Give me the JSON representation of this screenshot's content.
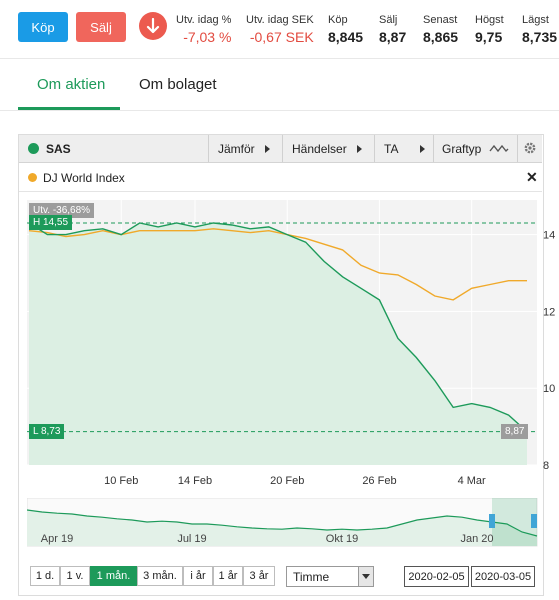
{
  "actions": {
    "buy_label": "Köp",
    "sell_label": "Sälj"
  },
  "stats": [
    {
      "label": "Utv. idag %",
      "value": "-7,03 %",
      "negative": true
    },
    {
      "label": "Utv. idag SEK",
      "value": "-0,67 SEK",
      "negative": true
    },
    {
      "label": "Köp",
      "value": "8,845"
    },
    {
      "label": "Sälj",
      "value": "8,87"
    },
    {
      "label": "Senast",
      "value": "8,865"
    },
    {
      "label": "Högst",
      "value": "9,75"
    },
    {
      "label": "Lägst",
      "value": "8,735"
    }
  ],
  "tabs": [
    {
      "label": "Om aktien",
      "active": true
    },
    {
      "label": "Om bolaget",
      "active": false
    }
  ],
  "toolbar": {
    "instrument": "SAS",
    "compare": "Jämför",
    "events": "Händelser",
    "ta": "TA",
    "chart_type": "Graftyp"
  },
  "comparison": {
    "name": "DJ World Index"
  },
  "colors": {
    "green": "#1d9a5a",
    "orange": "#f0a92a",
    "red": "#e24b40",
    "blue": "#1a9be6"
  },
  "chart_data": {
    "type": "line",
    "change_tag": "Utv. -36,68%",
    "high_tag": "H 14,55",
    "low_tag": "L 8,73",
    "last_tag": "8,87",
    "ylim": [
      8,
      14.9
    ],
    "yticks": [
      "14",
      "12",
      "10",
      "8"
    ],
    "ytick_values": [
      14,
      12,
      10,
      8
    ],
    "xticks": [
      "10 Feb",
      "14 Feb",
      "20 Feb",
      "26 Feb",
      "4 Mar"
    ],
    "xtick_index": [
      5,
      9,
      14,
      19,
      24
    ],
    "series": [
      {
        "name": "SAS",
        "color": "#1d9a5a",
        "values": [
          14.3,
          14.0,
          14.0,
          14.1,
          14.15,
          14.0,
          14.3,
          14.2,
          14.3,
          14.2,
          14.3,
          14.25,
          14.15,
          14.2,
          14.0,
          13.8,
          13.3,
          12.9,
          12.6,
          12.3,
          11.3,
          10.8,
          10.2,
          9.5,
          9.6,
          9.5,
          9.3,
          8.87
        ]
      },
      {
        "name": "DJ World Index",
        "color": "#f0a92a",
        "values": [
          14.1,
          14.05,
          13.95,
          14.0,
          14.1,
          14.0,
          14.1,
          14.1,
          14.1,
          14.1,
          14.15,
          14.1,
          14.05,
          14.1,
          14.0,
          13.9,
          13.75,
          13.6,
          13.2,
          13.0,
          12.95,
          12.7,
          12.4,
          12.3,
          12.6,
          12.7,
          12.8,
          12.8
        ]
      }
    ],
    "navigator": {
      "labels": [
        "Apr 19",
        "Jul 19",
        "Okt 19",
        "Jan 20"
      ],
      "label_index": [
        2,
        11,
        21,
        30
      ],
      "values": [
        0.8,
        0.75,
        0.72,
        0.7,
        0.65,
        0.62,
        0.58,
        0.55,
        0.5,
        0.52,
        0.5,
        0.45,
        0.45,
        0.42,
        0.38,
        0.35,
        0.33,
        0.32,
        0.35,
        0.33,
        0.3,
        0.32,
        0.3,
        0.32,
        0.35,
        0.45,
        0.55,
        0.6,
        0.65,
        0.62,
        0.55,
        0.5,
        0.45,
        0.25,
        0.15
      ]
    }
  },
  "ranges": [
    {
      "label": "1 d.",
      "active": false
    },
    {
      "label": "1 v.",
      "active": false
    },
    {
      "label": "1 mån.",
      "active": true
    },
    {
      "label": "3 mån.",
      "active": false
    },
    {
      "label": "i år",
      "active": false
    },
    {
      "label": "1 år",
      "active": false
    },
    {
      "label": "3 år",
      "active": false
    }
  ],
  "interval": {
    "selected": "Timme"
  },
  "date_from": "2020-02-05",
  "date_to": "2020-03-05"
}
